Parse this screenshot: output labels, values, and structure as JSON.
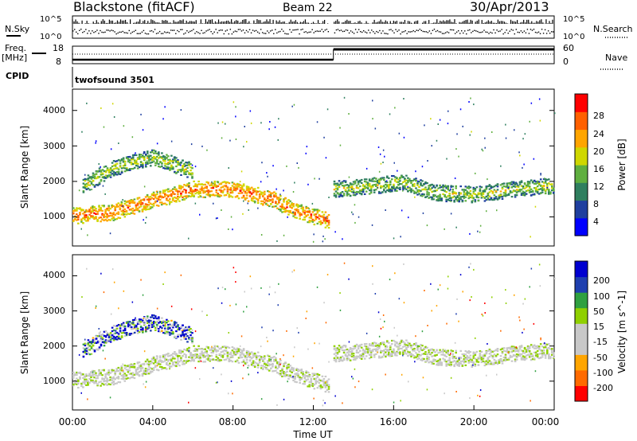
{
  "header": {
    "station": "Blackstone (fitACF)",
    "beam": "Beam 22",
    "date": "30/Apr/2013"
  },
  "top_panels": {
    "nsky_label": "N.Sky",
    "nsearch_label": "N.Search",
    "count_ticks": [
      "10^5",
      "10^0"
    ],
    "freq_label_line1": "Freq.",
    "freq_label_line2": "[MHz]",
    "freq_ticks": [
      "18",
      "8"
    ],
    "nave_label": "Nave",
    "nave_ticks": [
      "60",
      "0"
    ],
    "cpid_label": "CPID",
    "cpid_value": "twofsound 3501"
  },
  "colors": {
    "power_scale": [
      "#0000ff",
      "#1f3f9f",
      "#2f7f5f",
      "#5faf3f",
      "#cfd700",
      "#ffa500",
      "#ff6000",
      "#ff0000"
    ],
    "velocity_scale": [
      "#ff0000",
      "#ff6a00",
      "#ffa500",
      "#c8c8c8",
      "#c8c8c8",
      "#8fd000",
      "#2fa040",
      "#1f3faf",
      "#0000d0"
    ]
  },
  "chart_data": [
    {
      "type": "heatmap",
      "name": "power",
      "xlabel": "",
      "ylabel": "Slant Range [km]",
      "y_ticks": [
        "1000",
        "2000",
        "3000",
        "4000"
      ],
      "ylim": [
        180,
        4600
      ],
      "colorbar_label": "Power [dB]",
      "colorbar_ticks": [
        "4",
        "8",
        "12",
        "16",
        "20",
        "24",
        "28"
      ],
      "colorbar_range": [
        0,
        30
      ],
      "data_gap_hours": [
        12.75,
        13.0
      ],
      "echo_bands": [
        {
          "t": [
            0,
            2,
            4,
            6,
            8,
            10,
            11,
            12.8
          ],
          "range_km": [
            1050,
            1150,
            1500,
            1800,
            1800,
            1500,
            1200,
            900
          ],
          "peak_db": 28
        },
        {
          "t": [
            0.5,
            2,
            4,
            6
          ],
          "range_km": [
            1900,
            2400,
            2700,
            2300
          ],
          "peak_db": 20
        },
        {
          "t": [
            13,
            15,
            16.5,
            18,
            20,
            22,
            24
          ],
          "range_km": [
            1800,
            1900,
            2000,
            1700,
            1650,
            1800,
            1900
          ],
          "peak_db": 20
        }
      ]
    },
    {
      "type": "heatmap",
      "name": "velocity",
      "xlabel": "Time UT",
      "ylabel": "Slant Range [km]",
      "y_ticks": [
        "1000",
        "2000",
        "3000",
        "4000"
      ],
      "ylim": [
        180,
        4600
      ],
      "colorbar_label": "Velocity [m s^-1]",
      "colorbar_ticks": [
        "-200",
        "-100",
        "-50",
        "-15",
        "15",
        "50",
        "100",
        "200"
      ],
      "colorbar_range": [
        -250,
        250
      ],
      "x_ticks": [
        "00:00",
        "04:00",
        "08:00",
        "12:00",
        "16:00",
        "20:00",
        "00:00"
      ],
      "xlim_hours": [
        0,
        24
      ]
    }
  ]
}
